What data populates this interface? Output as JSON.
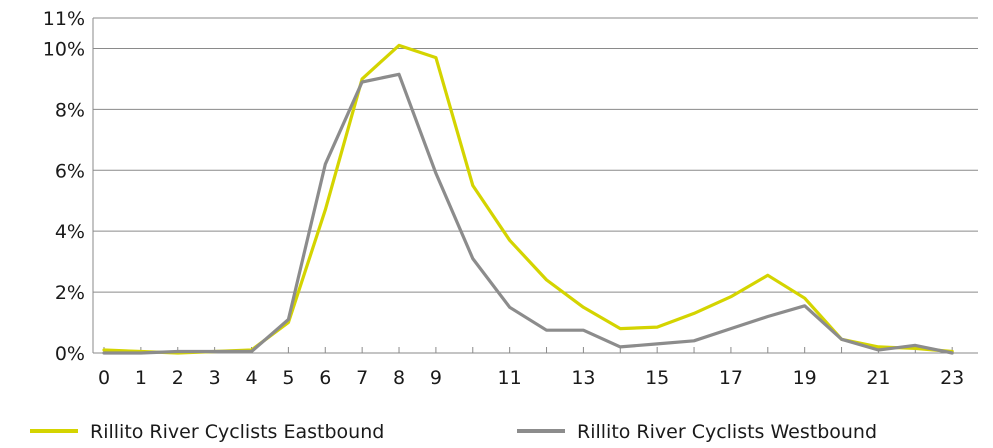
{
  "chart_data": {
    "type": "line",
    "title": "",
    "xlabel": "",
    "ylabel": "",
    "x": [
      0,
      1,
      2,
      3,
      4,
      5,
      6,
      7,
      8,
      9,
      10,
      11,
      12,
      13,
      14,
      15,
      16,
      17,
      18,
      19,
      20,
      21,
      22,
      23
    ],
    "x_tick_labels": [
      "0",
      "1",
      "2",
      "3",
      "4",
      "5",
      "6",
      "7",
      "8",
      "9",
      "11",
      "13",
      "15",
      "17",
      "19",
      "21",
      "23"
    ],
    "x_tick_values": [
      0,
      1,
      2,
      3,
      4,
      5,
      6,
      7,
      8,
      9,
      11,
      13,
      15,
      17,
      19,
      21,
      23
    ],
    "ylim": [
      0,
      11
    ],
    "y_tick_labels": [
      "0%",
      "2%",
      "4%",
      "6%",
      "8%",
      "10%",
      "11%"
    ],
    "y_tick_values": [
      0,
      2,
      4,
      6,
      8,
      10,
      11
    ],
    "grid": "horizontal",
    "legend_position": "bottom",
    "series": [
      {
        "name": "Rillito River Cyclists Eastbound",
        "color": "#d4d400",
        "values": [
          0.1,
          0.05,
          0.0,
          0.05,
          0.1,
          1.0,
          4.7,
          9.0,
          10.1,
          9.7,
          5.5,
          3.7,
          2.4,
          1.5,
          0.8,
          0.85,
          1.3,
          1.85,
          2.55,
          1.8,
          0.45,
          0.2,
          0.15,
          0.05
        ]
      },
      {
        "name": "Rillito River Cyclists Westbound",
        "color": "#8c8c8c",
        "values": [
          0.0,
          0.0,
          0.05,
          0.05,
          0.05,
          1.1,
          6.2,
          8.9,
          9.15,
          5.9,
          3.1,
          1.5,
          0.75,
          0.75,
          0.2,
          0.3,
          0.4,
          0.8,
          1.2,
          1.55,
          0.45,
          0.1,
          0.25,
          0.0
        ]
      }
    ]
  }
}
